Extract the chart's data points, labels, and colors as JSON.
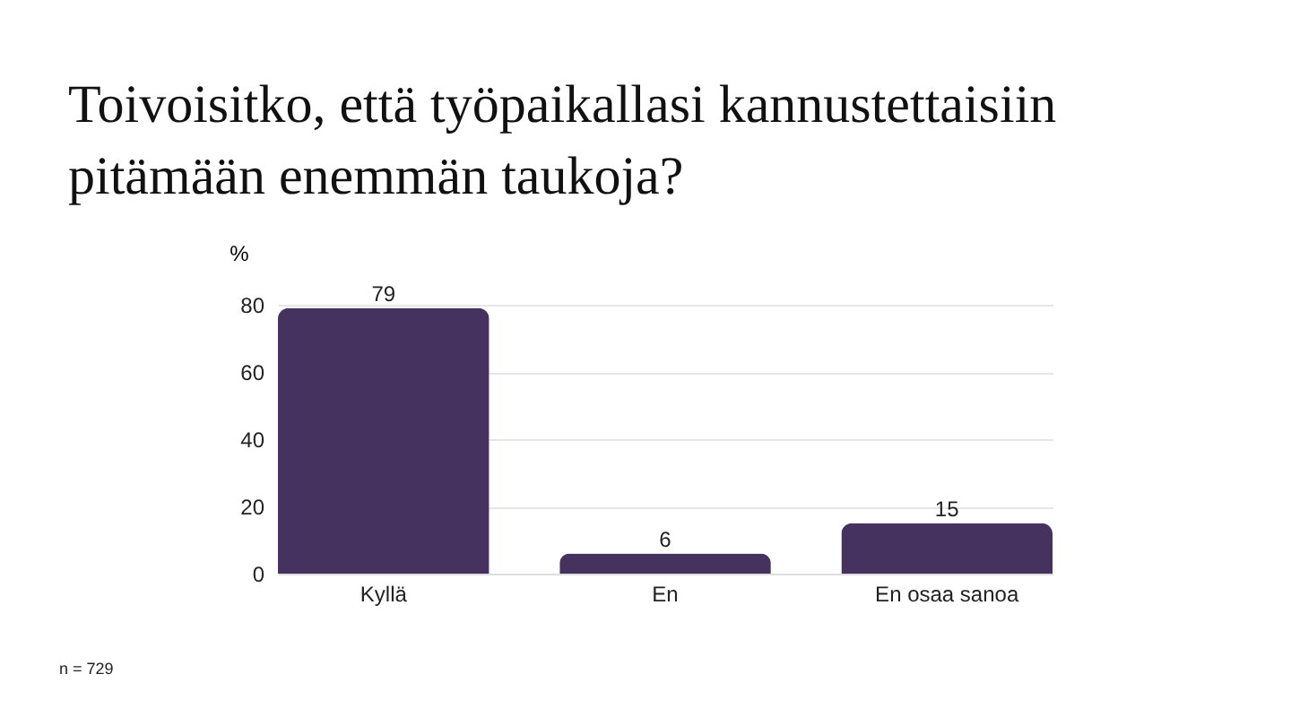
{
  "chart_data": {
    "type": "bar",
    "title": [
      "Toivoisitko, että työpaikallasi kannustettaisiin",
      "pitämään enemmän taukoja?"
    ],
    "ylabel": "%",
    "categories": [
      "Kyllä",
      "En",
      "En osaa sanoa"
    ],
    "values": [
      79,
      6,
      15
    ],
    "color": "#45325f",
    "ylim": [
      0,
      80
    ],
    "yticks": [
      0,
      20,
      40,
      60,
      80
    ],
    "grid": "y",
    "data_labels": true,
    "annotations": [
      "n = 729"
    ]
  }
}
